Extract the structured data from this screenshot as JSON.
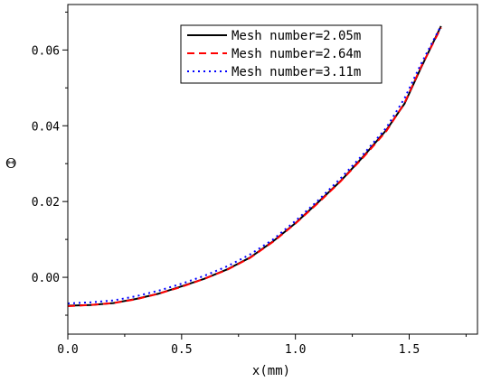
{
  "chart_data": {
    "type": "line",
    "title": "",
    "xlabel": "x(mm)",
    "ylabel": "Θ",
    "xlim": [
      0,
      1.8
    ],
    "ylim": [
      -0.015,
      0.072
    ],
    "x_ticks": [
      {
        "value": 0.0,
        "label": "0.0"
      },
      {
        "value": 0.5,
        "label": "0.5"
      },
      {
        "value": 1.0,
        "label": "1.0"
      },
      {
        "value": 1.5,
        "label": "1.5"
      }
    ],
    "y_ticks": [
      {
        "value": 0.0,
        "label": "0.00"
      },
      {
        "value": 0.02,
        "label": "0.02"
      },
      {
        "value": 0.04,
        "label": "0.04"
      },
      {
        "value": 0.06,
        "label": "0.06"
      }
    ],
    "legend_position": "top-right",
    "series": [
      {
        "name": "Mesh number=2.05m",
        "color": "#000000",
        "dash": "solid",
        "x": [
          0.0,
          0.1,
          0.2,
          0.3,
          0.4,
          0.5,
          0.6,
          0.7,
          0.8,
          0.9,
          1.0,
          1.1,
          1.2,
          1.3,
          1.4,
          1.48,
          1.55,
          1.64
        ],
        "y": [
          -0.0075,
          -0.0073,
          -0.0068,
          -0.0057,
          -0.0043,
          -0.0024,
          -0.0004,
          0.0021,
          0.0052,
          0.0094,
          0.0143,
          0.0198,
          0.0255,
          0.032,
          0.0389,
          0.0459,
          0.0551,
          0.0663
        ]
      },
      {
        "name": "Mesh number=2.64m",
        "color": "#ff0000",
        "dash": "dashed",
        "x": [
          0.0,
          0.1,
          0.2,
          0.3,
          0.4,
          0.5,
          0.6,
          0.7,
          0.8,
          0.9,
          1.0,
          1.1,
          1.2,
          1.3,
          1.4,
          1.48,
          1.55,
          1.64
        ],
        "y": [
          -0.0076,
          -0.0073,
          -0.0068,
          -0.0058,
          -0.0043,
          -0.0025,
          -0.0004,
          0.002,
          0.0051,
          0.0093,
          0.0142,
          0.0196,
          0.0254,
          0.0318,
          0.0386,
          0.0461,
          0.0553,
          0.0659
        ]
      },
      {
        "name": "Mesh number=3.11m",
        "color": "#0000ff",
        "dash": "dotted",
        "x": [
          0.0,
          0.1,
          0.2,
          0.3,
          0.4,
          0.5,
          0.6,
          0.7,
          0.8,
          0.9,
          1.0,
          1.1,
          1.2,
          1.3,
          1.4,
          1.48,
          1.55,
          1.64
        ],
        "y": [
          -0.0069,
          -0.0066,
          -0.0061,
          -0.005,
          -0.0035,
          -0.0017,
          0.0004,
          0.0029,
          0.006,
          0.0099,
          0.0149,
          0.0203,
          0.0262,
          0.0326,
          0.0395,
          0.0473,
          0.0561,
          0.0664
        ]
      }
    ]
  }
}
